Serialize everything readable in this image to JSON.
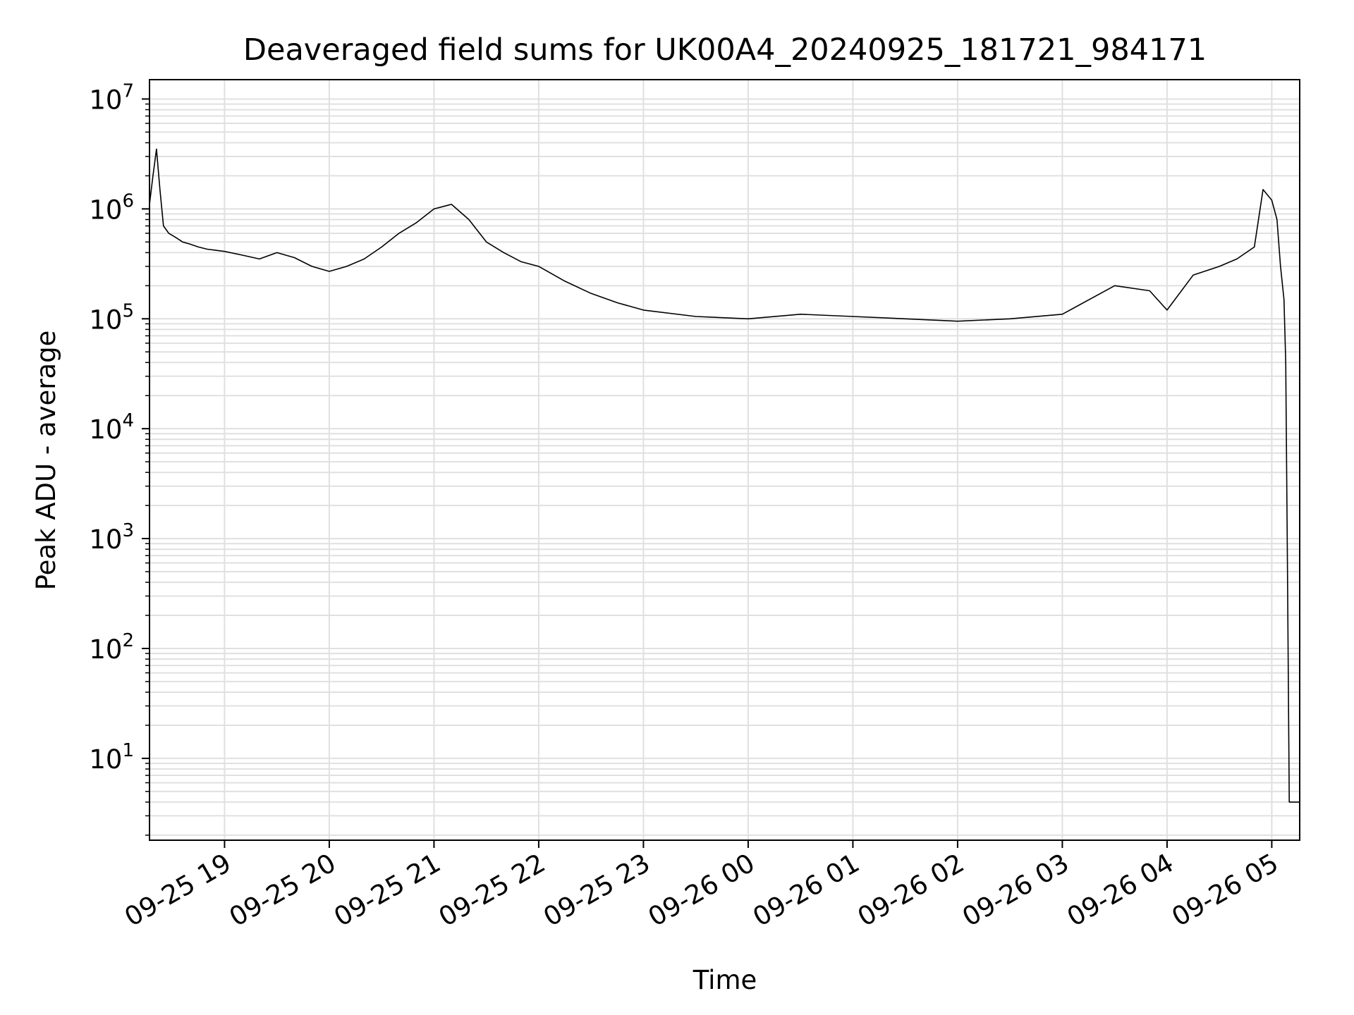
{
  "chart_data": {
    "type": "line",
    "title": "Deaveraged field sums for UK00A4_20240925_181721_984171",
    "xlabel": "Time",
    "ylabel": "Peak ADU - average",
    "yscale": "log",
    "ylim": [
      1.8,
      15000000
    ],
    "xlim": [
      "2024-09-25 18:17",
      "2024-09-26 05:16"
    ],
    "grid": true,
    "line_color": "#000000",
    "grid_color": "#e0e0e0",
    "x_ticks": [
      {
        "value": "2024-09-25 19:00",
        "label": "09-25 19"
      },
      {
        "value": "2024-09-25 20:00",
        "label": "09-25 20"
      },
      {
        "value": "2024-09-25 21:00",
        "label": "09-25 21"
      },
      {
        "value": "2024-09-25 22:00",
        "label": "09-25 22"
      },
      {
        "value": "2024-09-25 23:00",
        "label": "09-25 23"
      },
      {
        "value": "2024-09-26 00:00",
        "label": "09-26 00"
      },
      {
        "value": "2024-09-26 01:00",
        "label": "09-26 01"
      },
      {
        "value": "2024-09-26 02:00",
        "label": "09-26 02"
      },
      {
        "value": "2024-09-26 03:00",
        "label": "09-26 03"
      },
      {
        "value": "2024-09-26 04:00",
        "label": "09-26 04"
      },
      {
        "value": "2024-09-26 05:00",
        "label": "09-26 05"
      }
    ],
    "y_ticks": [
      {
        "value": 10,
        "base": "10",
        "exp": "1"
      },
      {
        "value": 100,
        "base": "10",
        "exp": "2"
      },
      {
        "value": 1000,
        "base": "10",
        "exp": "3"
      },
      {
        "value": 10000,
        "base": "10",
        "exp": "4"
      },
      {
        "value": 100000,
        "base": "10",
        "exp": "5"
      },
      {
        "value": 1000000,
        "base": "10",
        "exp": "6"
      },
      {
        "value": 10000000,
        "base": "10",
        "exp": "7"
      }
    ],
    "series": [
      {
        "x": [
          "2024-09-25 18:17",
          "2024-09-25 18:19",
          "2024-09-25 18:21",
          "2024-09-25 18:23",
          "2024-09-25 18:25",
          "2024-09-25 18:28",
          "2024-09-25 18:32",
          "2024-09-25 18:36",
          "2024-09-25 18:40",
          "2024-09-25 18:45",
          "2024-09-25 18:50",
          "2024-09-25 18:55",
          "2024-09-25 19:00",
          "2024-09-25 19:10",
          "2024-09-25 19:20",
          "2024-09-25 19:30",
          "2024-09-25 19:40",
          "2024-09-25 19:50",
          "2024-09-25 20:00",
          "2024-09-25 20:10",
          "2024-09-25 20:20",
          "2024-09-25 20:30",
          "2024-09-25 20:40",
          "2024-09-25 20:50",
          "2024-09-25 21:00",
          "2024-09-25 21:10",
          "2024-09-25 21:20",
          "2024-09-25 21:30",
          "2024-09-25 21:40",
          "2024-09-25 21:50",
          "2024-09-25 22:00",
          "2024-09-25 22:15",
          "2024-09-25 22:30",
          "2024-09-25 22:45",
          "2024-09-25 23:00",
          "2024-09-25 23:30",
          "2024-09-26 00:00",
          "2024-09-26 00:30",
          "2024-09-26 01:00",
          "2024-09-26 01:30",
          "2024-09-26 02:00",
          "2024-09-26 02:30",
          "2024-09-26 03:00",
          "2024-09-26 03:30",
          "2024-09-26 03:50",
          "2024-09-26 04:00",
          "2024-09-26 04:15",
          "2024-09-26 04:30",
          "2024-09-26 04:40",
          "2024-09-26 04:50",
          "2024-09-26 04:55",
          "2024-09-26 05:00",
          "2024-09-26 05:03",
          "2024-09-26 05:05",
          "2024-09-26 05:07",
          "2024-09-26 05:08",
          "2024-09-26 05:09",
          "2024-09-26 05:10",
          "2024-09-26 05:12",
          "2024-09-26 05:14",
          "2024-09-26 05:16"
        ],
        "y": [
          1100000,
          2000000,
          3500000,
          1500000,
          700000,
          600000,
          550000,
          500000,
          480000,
          450000,
          430000,
          420000,
          410000,
          380000,
          350000,
          400000,
          360000,
          300000,
          270000,
          300000,
          350000,
          450000,
          600000,
          750000,
          1000000,
          1100000,
          800000,
          500000,
          400000,
          330000,
          300000,
          220000,
          170000,
          140000,
          120000,
          105000,
          100000,
          110000,
          105000,
          100000,
          95000,
          100000,
          110000,
          200000,
          180000,
          120000,
          250000,
          300000,
          350000,
          450000,
          1500000,
          1200000,
          800000,
          300000,
          150000,
          40000,
          500,
          4,
          4,
          4,
          4
        ]
      }
    ]
  }
}
